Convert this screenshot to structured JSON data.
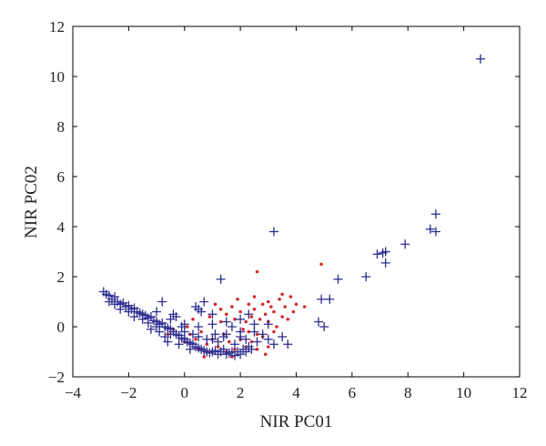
{
  "chart_data": {
    "type": "scatter",
    "title": "",
    "xlabel": "NIR PC01",
    "ylabel": "NIR PC02",
    "xlim": [
      -4,
      12
    ],
    "ylim": [
      -2,
      12
    ],
    "xticks": [
      -4,
      -2,
      0,
      2,
      4,
      6,
      8,
      10,
      12
    ],
    "yticks": [
      -2,
      0,
      2,
      4,
      6,
      8,
      10,
      12
    ],
    "xtick_labels": [
      "−4",
      "−2",
      "0",
      "2",
      "4",
      "6",
      "8",
      "10",
      "12"
    ],
    "ytick_labels": [
      "−2",
      "0",
      "2",
      "4",
      "6",
      "8",
      "10",
      "12"
    ],
    "grid": false,
    "series": [
      {
        "marker": "plus",
        "color": "#2b2b8f",
        "points": [
          [
            -2.9,
            1.4
          ],
          [
            -2.8,
            1.3
          ],
          [
            -2.7,
            1.25
          ],
          [
            -2.6,
            1.1
          ],
          [
            -2.5,
            1.2
          ],
          [
            -2.4,
            1.0
          ],
          [
            -2.3,
            0.9
          ],
          [
            -2.2,
            0.95
          ],
          [
            -2.1,
            0.8
          ],
          [
            -2.0,
            0.85
          ],
          [
            -1.9,
            0.7
          ],
          [
            -1.8,
            0.75
          ],
          [
            -1.7,
            0.6
          ],
          [
            -1.6,
            0.55
          ],
          [
            -1.5,
            0.5
          ],
          [
            -1.4,
            0.45
          ],
          [
            -1.3,
            0.35
          ],
          [
            -1.2,
            0.4
          ],
          [
            -1.1,
            0.25
          ],
          [
            -1.0,
            0.2
          ],
          [
            -0.9,
            0.1
          ],
          [
            -0.8,
            0.15
          ],
          [
            -0.7,
            0.0
          ],
          [
            -0.6,
            -0.05
          ],
          [
            -0.5,
            -0.1
          ],
          [
            -0.4,
            -0.2
          ],
          [
            -0.3,
            -0.3
          ],
          [
            -0.2,
            -0.35
          ],
          [
            -0.1,
            -0.45
          ],
          [
            0.0,
            -0.5
          ],
          [
            0.1,
            -0.6
          ],
          [
            0.2,
            -0.65
          ],
          [
            0.3,
            -0.7
          ],
          [
            0.4,
            -0.8
          ],
          [
            0.5,
            -0.85
          ],
          [
            0.6,
            -0.9
          ],
          [
            0.7,
            -0.95
          ],
          [
            0.8,
            -1.0
          ],
          [
            0.9,
            -1.05
          ],
          [
            1.0,
            -1.0
          ],
          [
            1.1,
            -0.95
          ],
          [
            1.2,
            -1.1
          ],
          [
            1.3,
            -1.0
          ],
          [
            1.4,
            -0.9
          ],
          [
            1.5,
            -1.1
          ],
          [
            1.6,
            -1.05
          ],
          [
            1.7,
            -1.0
          ],
          [
            1.8,
            -1.15
          ],
          [
            1.9,
            -1.0
          ],
          [
            2.0,
            -1.1
          ],
          [
            2.1,
            -0.9
          ],
          [
            2.2,
            -1.0
          ],
          [
            2.3,
            -0.8
          ],
          [
            2.4,
            -0.9
          ],
          [
            -2.5,
            0.9
          ],
          [
            -2.0,
            0.6
          ],
          [
            -1.5,
            0.3
          ],
          [
            -1.0,
            0.0
          ],
          [
            -0.5,
            -0.3
          ],
          [
            0.0,
            -0.2
          ],
          [
            0.5,
            -0.4
          ],
          [
            1.0,
            -0.5
          ],
          [
            1.5,
            -0.3
          ],
          [
            2.0,
            -0.4
          ],
          [
            2.5,
            -0.2
          ],
          [
            -0.5,
            0.3
          ],
          [
            0.0,
            0.1
          ],
          [
            0.5,
            0.0
          ],
          [
            1.0,
            0.1
          ],
          [
            1.5,
            0.2
          ],
          [
            2.0,
            0.3
          ],
          [
            2.5,
            0.1
          ],
          [
            -0.7,
            -0.4
          ],
          [
            0.3,
            -0.3
          ],
          [
            1.2,
            -0.6
          ],
          [
            1.8,
            -0.7
          ],
          [
            2.6,
            -0.6
          ],
          [
            -0.2,
            -0.7
          ],
          [
            0.8,
            -0.5
          ],
          [
            1.4,
            -0.4
          ],
          [
            2.2,
            -0.5
          ],
          [
            -1.2,
            -0.1
          ],
          [
            -0.3,
            0.4
          ],
          [
            0.6,
            0.6
          ],
          [
            1.0,
            0.5
          ],
          [
            -0.8,
            1.0
          ],
          [
            0.7,
            1.0
          ],
          [
            0.5,
            0.7
          ],
          [
            0.4,
            0.8
          ],
          [
            -1.0,
            0.6
          ],
          [
            -0.4,
            0.5
          ],
          [
            2.8,
            -0.3
          ],
          [
            3.0,
            -0.5
          ],
          [
            3.0,
            0.1
          ],
          [
            3.2,
            -0.7
          ],
          [
            3.5,
            -0.4
          ],
          [
            3.7,
            -0.7
          ],
          [
            1.3,
            1.9
          ],
          [
            3.2,
            3.8
          ],
          [
            4.8,
            0.2
          ],
          [
            4.9,
            1.1
          ],
          [
            5.0,
            0.0
          ],
          [
            5.2,
            1.1
          ],
          [
            5.5,
            1.9
          ],
          [
            6.5,
            2.0
          ],
          [
            6.9,
            2.9
          ],
          [
            7.1,
            2.95
          ],
          [
            7.2,
            3.0
          ],
          [
            7.2,
            2.55
          ],
          [
            7.9,
            3.3
          ],
          [
            8.8,
            3.9
          ],
          [
            9.0,
            4.5
          ],
          [
            9.0,
            3.8
          ],
          [
            10.6,
            10.7
          ],
          [
            -2.7,
            1.0
          ],
          [
            -2.3,
            0.7
          ],
          [
            -1.8,
            0.4
          ],
          [
            -1.3,
            0.15
          ],
          [
            -0.9,
            -0.2
          ],
          [
            -0.1,
            0.0
          ],
          [
            1.7,
            0.0
          ],
          [
            2.3,
            0.5
          ],
          [
            2.0,
            -0.2
          ],
          [
            1.1,
            -0.3
          ],
          [
            0.2,
            -0.9
          ],
          [
            -0.6,
            -0.6
          ]
        ]
      },
      {
        "marker": "dot",
        "color": "#d42a2a",
        "points": [
          [
            0.9,
            0.4
          ],
          [
            1.1,
            0.9
          ],
          [
            1.3,
            0.7
          ],
          [
            1.5,
            0.5
          ],
          [
            1.7,
            0.8
          ],
          [
            1.8,
            0.3
          ],
          [
            2.0,
            0.6
          ],
          [
            2.1,
            -0.1
          ],
          [
            2.2,
            0.2
          ],
          [
            2.3,
            0.9
          ],
          [
            2.4,
            0.4
          ],
          [
            2.5,
            0.7
          ],
          [
            2.6,
            -0.3
          ],
          [
            2.7,
            0.3
          ],
          [
            2.8,
            0.9
          ],
          [
            2.9,
            0.5
          ],
          [
            3.0,
            0.2
          ],
          [
            3.1,
            0.8
          ],
          [
            3.2,
            0.6
          ],
          [
            3.3,
            0.0
          ],
          [
            3.4,
            1.1
          ],
          [
            3.5,
            0.4
          ],
          [
            3.6,
            0.8
          ],
          [
            3.7,
            0.3
          ],
          [
            3.8,
            1.2
          ],
          [
            3.9,
            0.6
          ],
          [
            4.0,
            0.9
          ],
          [
            3.0,
            1.0
          ],
          [
            2.6,
            2.2
          ],
          [
            4.9,
            2.5
          ],
          [
            1.0,
            -0.5
          ],
          [
            1.2,
            -0.8
          ],
          [
            1.4,
            -0.3
          ],
          [
            1.6,
            -0.6
          ],
          [
            1.8,
            -0.9
          ],
          [
            2.0,
            -0.5
          ],
          [
            2.2,
            -0.8
          ],
          [
            2.4,
            -0.6
          ],
          [
            2.6,
            -0.9
          ],
          [
            2.8,
            -0.4
          ],
          [
            0.2,
            -0.3
          ],
          [
            0.4,
            -0.5
          ],
          [
            0.6,
            -0.2
          ],
          [
            0.8,
            -0.7
          ],
          [
            0.1,
            0.0
          ],
          [
            0.3,
            0.3
          ],
          [
            0.5,
            -0.9
          ],
          [
            0.7,
            -1.2
          ],
          [
            1.5,
            -1.0
          ],
          [
            2.3,
            -0.2
          ],
          [
            3.0,
            -0.8
          ],
          [
            3.2,
            -0.2
          ],
          [
            1.9,
            1.1
          ],
          [
            1.3,
            0.2
          ],
          [
            2.5,
            1.2
          ],
          [
            2.9,
            -1.1
          ],
          [
            3.5,
            1.3
          ],
          [
            4.3,
            0.8
          ],
          [
            -0.4,
            -0.1
          ],
          [
            -0.6,
            -0.3
          ],
          [
            0.0,
            -0.6
          ],
          [
            1.7,
            -1.2
          ]
        ]
      }
    ]
  }
}
